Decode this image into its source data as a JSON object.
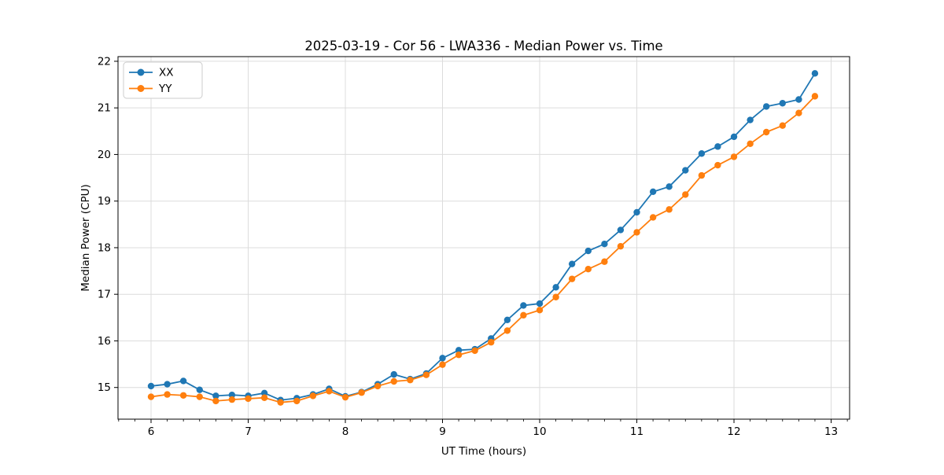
{
  "figure": {
    "background": "#ffffff",
    "plot_background": "#ffffff",
    "spine_color": "#000000",
    "grid_color": "#dcdcdc"
  },
  "chart_data": {
    "type": "line",
    "title": "2025-03-19 - Cor 56 - LWA336 - Median Power vs. Time",
    "xlabel": "UT Time (hours)",
    "ylabel": "Median Power (CPU)",
    "grid": true,
    "legend_position": "upper-left",
    "xlim": [
      5.66,
      13.19
    ],
    "ylim": [
      14.32,
      22.1
    ],
    "xticks": [
      6,
      7,
      8,
      9,
      10,
      11,
      12,
      13
    ],
    "yticks": [
      15,
      16,
      17,
      18,
      19,
      20,
      21,
      22
    ],
    "x_minor_step": 0.1666667,
    "x": [
      6.0,
      6.167,
      6.333,
      6.5,
      6.667,
      6.833,
      7.0,
      7.167,
      7.333,
      7.5,
      7.667,
      7.833,
      8.0,
      8.167,
      8.333,
      8.5,
      8.667,
      8.833,
      9.0,
      9.167,
      9.333,
      9.5,
      9.667,
      9.833,
      10.0,
      10.167,
      10.333,
      10.5,
      10.667,
      10.833,
      11.0,
      11.167,
      11.333,
      11.5,
      11.667,
      11.833,
      12.0,
      12.167,
      12.333,
      12.5,
      12.667,
      12.833
    ],
    "series": [
      {
        "name": "XX",
        "color": "#1f77b4",
        "marker": "circle",
        "values": [
          15.03,
          15.07,
          15.14,
          14.95,
          14.82,
          14.84,
          14.82,
          14.88,
          14.73,
          14.77,
          14.85,
          14.97,
          14.81,
          14.9,
          15.07,
          15.28,
          15.18,
          15.3,
          15.63,
          15.8,
          15.82,
          16.05,
          16.45,
          16.76,
          16.8,
          17.15,
          17.65,
          17.93,
          18.08,
          18.38,
          18.76,
          19.2,
          19.31,
          19.66,
          20.02,
          20.17,
          20.38,
          20.74,
          21.03,
          21.1,
          21.18,
          21.74
        ]
      },
      {
        "name": "YY",
        "color": "#ff7f0e",
        "marker": "circle",
        "values": [
          14.8,
          14.85,
          14.83,
          14.8,
          14.71,
          14.74,
          14.76,
          14.78,
          14.68,
          14.71,
          14.82,
          14.92,
          14.79,
          14.89,
          15.03,
          15.13,
          15.16,
          15.27,
          15.49,
          15.7,
          15.79,
          15.97,
          16.22,
          16.55,
          16.66,
          16.94,
          17.33,
          17.54,
          17.7,
          18.03,
          18.33,
          18.65,
          18.82,
          19.14,
          19.55,
          19.77,
          19.95,
          20.23,
          20.48,
          20.62,
          20.89,
          21.25
        ]
      }
    ]
  }
}
